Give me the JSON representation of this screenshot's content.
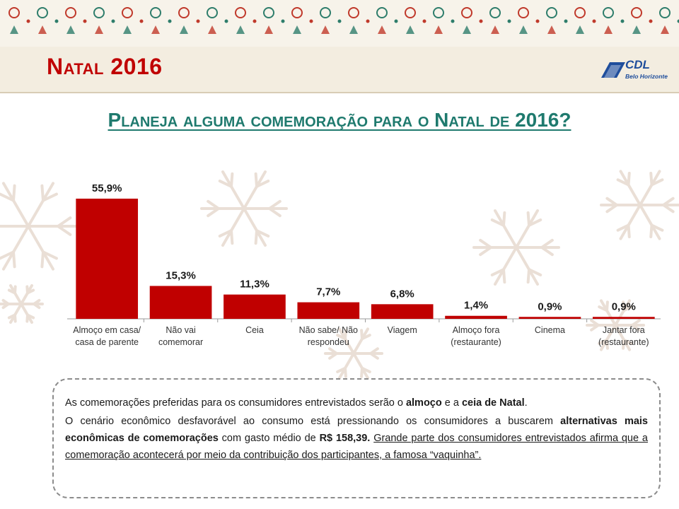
{
  "slide": {
    "title": "Natal 2016",
    "question": "Planeja alguma comemoração para o Natal de 2016?"
  },
  "logo": {
    "name": "CDL",
    "subtitle": "Belo Horizonte"
  },
  "colors": {
    "bar": "#c00000",
    "title": "#c00000",
    "question": "#1f7a6e",
    "logo": "#1f4e9c"
  },
  "chart_data": {
    "type": "bar",
    "categories": [
      [
        "Almoço em casa/",
        "casa de parente"
      ],
      [
        "Não vai",
        "comemorar"
      ],
      [
        "Ceia"
      ],
      [
        "Não sabe/ Não",
        "respondeu"
      ],
      [
        "Viagem"
      ],
      [
        "Almoço fora",
        "(restaurante)"
      ],
      [
        "Cinema"
      ],
      [
        "Jantar fora",
        "(restaurante)"
      ]
    ],
    "values": [
      55.9,
      15.3,
      11.3,
      7.7,
      6.8,
      1.4,
      0.9,
      0.9
    ],
    "data_labels": [
      "55,9%",
      "15,3%",
      "11,3%",
      "7,7%",
      "6,8%",
      "1,4%",
      "0,9%",
      "0,9%"
    ],
    "ylim": [
      0,
      60
    ],
    "grid": false,
    "legend": "none"
  },
  "note": {
    "p1": {
      "a": "As comemorações preferidas para os consumidores entrevistados serão o ",
      "b1": "almoço",
      "c": " e a ",
      "b2": "ceia de Natal",
      "d": "."
    },
    "p2": {
      "a": "O cenário econômico desfavorável ao consumo está pressionando os consumidores a buscarem ",
      "b1": "alternativas mais econômicas de comemorações",
      "c": " com gasto médio de ",
      "b2": "R$ 158,39.",
      "d": " ",
      "u": "Grande parte dos consumidores entrevistados afirma que a comemoração acontecerá por meio da contribuição dos participantes, a famosa “vaquinha”."
    }
  }
}
